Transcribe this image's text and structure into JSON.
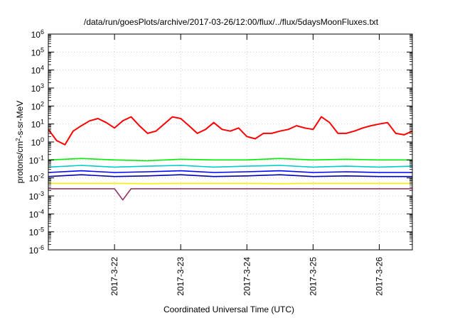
{
  "chart_data": {
    "type": "line",
    "title": "/data/run/goesPlots/archive/2017-03-26/12:00/flux/../flux/5daysMoonFluxes.txt",
    "xlabel": "Coordinated Universal Time (UTC)",
    "ylabel_parts": [
      "protons/cm",
      "2",
      "-s-sr-MeV"
    ],
    "y_scale": "log",
    "ylim": [
      1e-06,
      1000000.0
    ],
    "xlim": [
      "2017-03-21T00:00",
      "2017-03-26T12:00"
    ],
    "grid": true,
    "legend": "none",
    "x_ticks": [
      "2017-3-22",
      "2017-3-23",
      "2017-3-24",
      "2017-3-25",
      "2017-3-26"
    ],
    "y_ticks": [
      {
        "base": "10",
        "exp": "-6"
      },
      {
        "base": "10",
        "exp": "-5"
      },
      {
        "base": "10",
        "exp": "-4"
      },
      {
        "base": "10",
        "exp": "-3"
      },
      {
        "base": "10",
        "exp": "-2"
      },
      {
        "base": "10",
        "exp": "-1"
      },
      {
        "base": "10",
        "exp": "0"
      },
      {
        "base": "10",
        "exp": "1"
      },
      {
        "base": "10",
        "exp": "2"
      },
      {
        "base": "10",
        "exp": "3"
      },
      {
        "base": "10",
        "exp": "4"
      },
      {
        "base": "10",
        "exp": "5"
      },
      {
        "base": "10",
        "exp": "6"
      }
    ],
    "series": [
      {
        "color": "#ff0000",
        "x": [
          "2017-03-21T00:00",
          "2017-03-21T03:00",
          "2017-03-21T06:00",
          "2017-03-21T09:00",
          "2017-03-21T12:00",
          "2017-03-21T15:00",
          "2017-03-21T18:00",
          "2017-03-21T21:00",
          "2017-03-22T00:00",
          "2017-03-22T03:00",
          "2017-03-22T06:00",
          "2017-03-22T09:00",
          "2017-03-22T12:00",
          "2017-03-22T15:00",
          "2017-03-22T18:00",
          "2017-03-22T21:00",
          "2017-03-23T00:00",
          "2017-03-23T03:00",
          "2017-03-23T06:00",
          "2017-03-23T09:00",
          "2017-03-23T12:00",
          "2017-03-23T15:00",
          "2017-03-23T18:00",
          "2017-03-23T21:00",
          "2017-03-24T00:00",
          "2017-03-24T03:00",
          "2017-03-24T06:00",
          "2017-03-24T09:00",
          "2017-03-24T12:00",
          "2017-03-24T15:00",
          "2017-03-24T18:00",
          "2017-03-24T21:00",
          "2017-03-25T00:00",
          "2017-03-25T03:00",
          "2017-03-25T06:00",
          "2017-03-25T09:00",
          "2017-03-25T12:00",
          "2017-03-25T15:00",
          "2017-03-25T18:00",
          "2017-03-25T21:00",
          "2017-03-26T00:00",
          "2017-03-26T03:00",
          "2017-03-26T06:00",
          "2017-03-26T09:00",
          "2017-03-26T12:00"
        ],
        "values": [
          5,
          1.2,
          0.7,
          4,
          8,
          15,
          20,
          12,
          6,
          15,
          25,
          8,
          3,
          4,
          10,
          25,
          20,
          8,
          3,
          5,
          12,
          5,
          4,
          6,
          2,
          1.5,
          3,
          3,
          4,
          5,
          8,
          6,
          5,
          25,
          12,
          3,
          3,
          4,
          6,
          8,
          10,
          12,
          3,
          2.5,
          4
        ]
      },
      {
        "color": "#00ee00",
        "x": [
          "2017-03-21T00:00",
          "2017-03-21T12:00",
          "2017-03-22T00:00",
          "2017-03-22T12:00",
          "2017-03-23T00:00",
          "2017-03-23T12:00",
          "2017-03-24T00:00",
          "2017-03-24T12:00",
          "2017-03-25T00:00",
          "2017-03-25T12:00",
          "2017-03-26T00:00",
          "2017-03-26T12:00"
        ],
        "values": [
          0.1,
          0.12,
          0.1,
          0.09,
          0.11,
          0.1,
          0.1,
          0.12,
          0.1,
          0.11,
          0.1,
          0.1
        ]
      },
      {
        "color": "#00cccc",
        "x": [
          "2017-03-21T00:00",
          "2017-03-21T12:00",
          "2017-03-22T00:00",
          "2017-03-22T12:00",
          "2017-03-23T00:00",
          "2017-03-23T12:00",
          "2017-03-24T00:00",
          "2017-03-24T12:00",
          "2017-03-25T00:00",
          "2017-03-25T12:00",
          "2017-03-26T00:00",
          "2017-03-26T12:00"
        ],
        "values": [
          0.04,
          0.05,
          0.04,
          0.045,
          0.05,
          0.04,
          0.045,
          0.05,
          0.04,
          0.045,
          0.04,
          0.045
        ]
      },
      {
        "color": "#0000ff",
        "x": [
          "2017-03-21T00:00",
          "2017-03-21T12:00",
          "2017-03-22T00:00",
          "2017-03-22T12:00",
          "2017-03-23T00:00",
          "2017-03-23T12:00",
          "2017-03-24T00:00",
          "2017-03-24T12:00",
          "2017-03-25T00:00",
          "2017-03-25T12:00",
          "2017-03-26T00:00",
          "2017-03-26T12:00"
        ],
        "values": [
          0.02,
          0.025,
          0.02,
          0.022,
          0.025,
          0.02,
          0.022,
          0.025,
          0.02,
          0.022,
          0.02,
          0.02
        ]
      },
      {
        "color": "#0000aa",
        "x": [
          "2017-03-21T00:00",
          "2017-03-21T12:00",
          "2017-03-22T00:00",
          "2017-03-22T12:00",
          "2017-03-23T00:00",
          "2017-03-23T12:00",
          "2017-03-24T00:00",
          "2017-03-24T12:00",
          "2017-03-25T00:00",
          "2017-03-25T12:00",
          "2017-03-26T00:00",
          "2017-03-26T12:00"
        ],
        "values": [
          0.012,
          0.015,
          0.012,
          0.013,
          0.015,
          0.012,
          0.013,
          0.015,
          0.012,
          0.013,
          0.012,
          0.012
        ]
      },
      {
        "color": "#ffee00",
        "x": [
          "2017-03-21T00:00",
          "2017-03-21T12:00",
          "2017-03-22T00:00",
          "2017-03-22T12:00",
          "2017-03-23T00:00",
          "2017-03-23T12:00",
          "2017-03-24T00:00",
          "2017-03-24T12:00",
          "2017-03-25T00:00",
          "2017-03-25T12:00",
          "2017-03-26T00:00",
          "2017-03-26T12:00"
        ],
        "values": [
          0.005,
          0.005,
          0.005,
          0.0048,
          0.005,
          0.005,
          0.005,
          0.0048,
          0.005,
          0.005,
          0.005,
          0.005
        ]
      },
      {
        "color": "#993366",
        "x": [
          "2017-03-21T00:00",
          "2017-03-21T12:00",
          "2017-03-22T00:00",
          "2017-03-22T03:00",
          "2017-03-22T06:00",
          "2017-03-22T12:00",
          "2017-03-23T00:00",
          "2017-03-23T12:00",
          "2017-03-24T00:00",
          "2017-03-24T12:00",
          "2017-03-25T00:00",
          "2017-03-25T12:00",
          "2017-03-26T00:00",
          "2017-03-26T12:00"
        ],
        "values": [
          0.0025,
          0.0025,
          0.0025,
          0.0006,
          0.0025,
          0.0025,
          0.0025,
          0.0025,
          0.0025,
          0.0025,
          0.0025,
          0.0025,
          0.0025,
          0.0025
        ]
      }
    ]
  }
}
